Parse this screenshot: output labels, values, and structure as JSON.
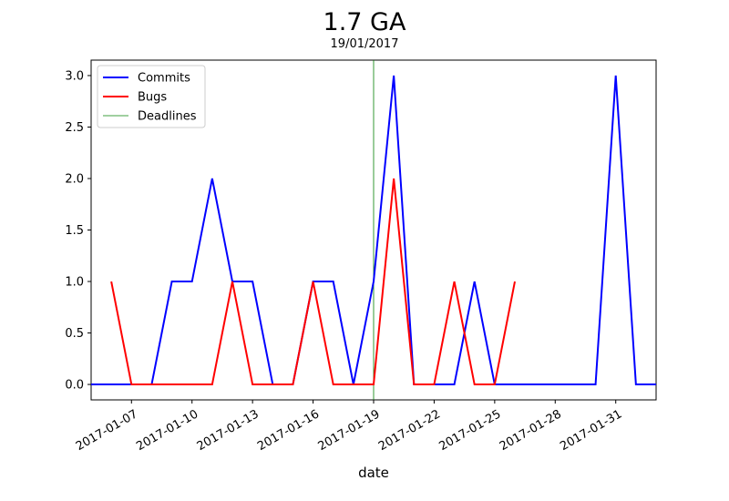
{
  "chart_data": {
    "type": "line",
    "title": "1.7 GA",
    "subtitle": "19/01/2017",
    "xlabel": "date",
    "ylabel": "",
    "x_range": [
      "2017-01-05",
      "2017-02-02"
    ],
    "ylim": [
      -0.15,
      3.15
    ],
    "y_ticks": [
      "0.0",
      "0.5",
      "1.0",
      "1.5",
      "2.0",
      "2.5",
      "3.0"
    ],
    "x_ticks": [
      "2017-01-07",
      "2017-01-10",
      "2017-01-13",
      "2017-01-16",
      "2017-01-19",
      "2017-01-22",
      "2017-01-25",
      "2017-01-28",
      "2017-01-31"
    ],
    "grid": false,
    "legend_position": "top-left",
    "series": [
      {
        "name": "Commits",
        "color": "#0000ff",
        "x": [
          "2017-01-05",
          "2017-01-06",
          "2017-01-07",
          "2017-01-08",
          "2017-01-09",
          "2017-01-10",
          "2017-01-11",
          "2017-01-12",
          "2017-01-13",
          "2017-01-14",
          "2017-01-15",
          "2017-01-16",
          "2017-01-17",
          "2017-01-18",
          "2017-01-19",
          "2017-01-20",
          "2017-01-21",
          "2017-01-22",
          "2017-01-23",
          "2017-01-24",
          "2017-01-25",
          "2017-01-26",
          "2017-01-27",
          "2017-01-28",
          "2017-01-29",
          "2017-01-30",
          "2017-01-31",
          "2017-02-01",
          "2017-02-02"
        ],
        "values": [
          0,
          0,
          0,
          0,
          1,
          1,
          2,
          1,
          1,
          0,
          0,
          1,
          1,
          0,
          1,
          3,
          0,
          0,
          0,
          1,
          0,
          0,
          0,
          0,
          0,
          0,
          3,
          0,
          0
        ]
      },
      {
        "name": "Bugs",
        "color": "#ff0000",
        "x": [
          "2017-01-06",
          "2017-01-07",
          "2017-01-08",
          "2017-01-09",
          "2017-01-10",
          "2017-01-11",
          "2017-01-12",
          "2017-01-13",
          "2017-01-14",
          "2017-01-15",
          "2017-01-16",
          "2017-01-17",
          "2017-01-18",
          "2017-01-19",
          "2017-01-20",
          "2017-01-21",
          "2017-01-22",
          "2017-01-23",
          "2017-01-24",
          "2017-01-25",
          "2017-01-26"
        ],
        "values": [
          1,
          0,
          0,
          0,
          0,
          0,
          1,
          0,
          0,
          0,
          1,
          0,
          0,
          0,
          2,
          0,
          0,
          1,
          0,
          0,
          1
        ]
      }
    ],
    "vlines": [
      {
        "name": "Deadlines",
        "color": "#008000",
        "x": [
          "2017-01-19"
        ]
      }
    ]
  }
}
